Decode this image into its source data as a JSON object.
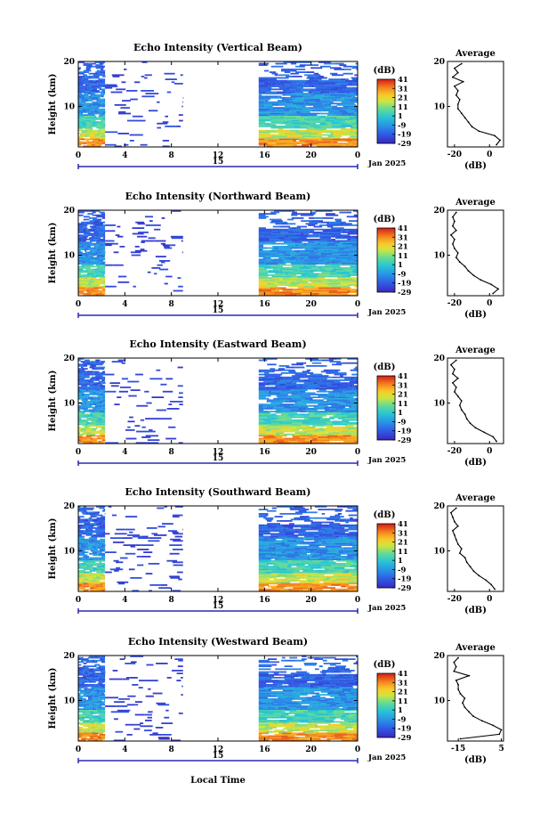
{
  "figure": {
    "xlabel": "Local Time",
    "date_label": "Jan 2025"
  },
  "chart_data": [
    {
      "type": "heatmap",
      "title": "Echo Intensity (Vertical Beam)",
      "ylabel": "Height (km)",
      "xlabel": "Local Time",
      "x_ticks": [
        "0",
        "4",
        "8",
        "12",
        "16",
        "20",
        "0"
      ],
      "x_range": [
        0,
        24
      ],
      "day_label": "15",
      "date_label": "Jan 2025",
      "y_ticks": [
        "10",
        "20"
      ],
      "y_range": [
        1,
        20
      ],
      "colorbar": {
        "unit": "(dB)",
        "ticks": [
          "41",
          "31",
          "21",
          "11",
          "1",
          "-9",
          "-19",
          "-29"
        ],
        "range": [
          -29,
          41
        ]
      },
      "data_gaps_hours": [
        [
          2.3,
          9.0
        ],
        [
          9.0,
          15.5
        ]
      ],
      "profile": {
        "title": "Average",
        "xlabel": "(dB)",
        "x_ticks": [
          "-20",
          "0"
        ],
        "x_range": [
          -24,
          8
        ],
        "y_ticks": [
          "10",
          "20"
        ],
        "y_range": [
          1,
          20
        ],
        "height_km": [
          1.5,
          2.5,
          3.5,
          4.5,
          5.5,
          6.5,
          7.5,
          8.5,
          9.5,
          10.5,
          11.5,
          12.5,
          13.5,
          14.5,
          15.5,
          16.5,
          17.5,
          18.5,
          19.5
        ],
        "values_db": [
          4,
          6,
          3,
          -6,
          -10,
          -12,
          -14,
          -16,
          -18,
          -18,
          -17,
          -19,
          -18,
          -20,
          -15,
          -21,
          -18,
          -20,
          -16
        ]
      }
    },
    {
      "type": "heatmap",
      "title": "Echo Intensity (Northward Beam)",
      "ylabel": "Height (km)",
      "xlabel": "Local Time",
      "x_ticks": [
        "0",
        "4",
        "8",
        "12",
        "16",
        "20",
        "0"
      ],
      "x_range": [
        0,
        24
      ],
      "day_label": "15",
      "date_label": "Jan 2025",
      "y_ticks": [
        "10",
        "20"
      ],
      "y_range": [
        1,
        20
      ],
      "colorbar": {
        "unit": "(dB)",
        "ticks": [
          "41",
          "31",
          "21",
          "11",
          "1",
          "-9",
          "-19",
          "-29"
        ],
        "range": [
          -29,
          41
        ]
      },
      "profile": {
        "title": "Average",
        "xlabel": "(dB)",
        "x_ticks": [
          "-20",
          "0"
        ],
        "x_range": [
          -24,
          8
        ],
        "y_ticks": [
          "10",
          "20"
        ],
        "y_range": [
          1,
          20
        ],
        "height_km": [
          1.5,
          2.5,
          3.5,
          4.5,
          5.5,
          6.5,
          7.5,
          8.5,
          9.5,
          10.5,
          11.5,
          12.5,
          13.5,
          14.5,
          15.5,
          16.5,
          17.5,
          18.5,
          19.5
        ],
        "values_db": [
          2,
          5,
          1,
          -5,
          -9,
          -12,
          -14,
          -17,
          -19,
          -18,
          -20,
          -21,
          -20,
          -22,
          -19,
          -21,
          -20,
          -21,
          -19
        ]
      }
    },
    {
      "type": "heatmap",
      "title": "Echo Intensity (Eastward Beam)",
      "ylabel": "Height (km)",
      "xlabel": "Local Time",
      "x_ticks": [
        "0",
        "4",
        "8",
        "12",
        "16",
        "20",
        "0"
      ],
      "x_range": [
        0,
        24
      ],
      "day_label": "15",
      "date_label": "Jan 2025",
      "y_ticks": [
        "10",
        "20"
      ],
      "y_range": [
        1,
        20
      ],
      "colorbar": {
        "unit": "(dB)",
        "ticks": [
          "41",
          "31",
          "21",
          "11",
          "1",
          "-9",
          "-19",
          "-29"
        ],
        "range": [
          -29,
          41
        ]
      },
      "profile": {
        "title": "Average",
        "xlabel": "(dB)",
        "x_ticks": [
          "-20",
          "0"
        ],
        "x_range": [
          -24,
          8
        ],
        "y_ticks": [
          "10",
          "20"
        ],
        "y_range": [
          1,
          20
        ],
        "height_km": [
          1.5,
          2.5,
          3.5,
          4.5,
          5.5,
          6.5,
          7.5,
          8.5,
          9.5,
          10.5,
          11.5,
          12.5,
          13.5,
          14.5,
          15.5,
          16.5,
          17.5,
          18.5,
          19.5
        ],
        "values_db": [
          4,
          2,
          -3,
          -8,
          -11,
          -13,
          -14,
          -16,
          -17,
          -16,
          -18,
          -20,
          -19,
          -21,
          -18,
          -21,
          -20,
          -22,
          -19
        ]
      }
    },
    {
      "type": "heatmap",
      "title": "Echo Intensity (Southward Beam)",
      "ylabel": "Height (km)",
      "xlabel": "Local Time",
      "x_ticks": [
        "0",
        "4",
        "8",
        "12",
        "16",
        "20",
        "0"
      ],
      "x_range": [
        0,
        24
      ],
      "day_label": "15",
      "date_label": "Jan 2025",
      "y_ticks": [
        "10",
        "20"
      ],
      "y_range": [
        1,
        20
      ],
      "colorbar": {
        "unit": "(dB)",
        "ticks": [
          "41",
          "31",
          "21",
          "11",
          "1",
          "-9",
          "-19",
          "-29"
        ],
        "range": [
          -29,
          41
        ]
      },
      "profile": {
        "title": "Average",
        "xlabel": "(dB)",
        "x_ticks": [
          "-20",
          "0"
        ],
        "x_range": [
          -24,
          8
        ],
        "y_ticks": [
          "10",
          "20"
        ],
        "y_range": [
          1,
          20
        ],
        "height_km": [
          1.5,
          2.5,
          3.5,
          4.5,
          5.5,
          6.5,
          7.5,
          8.5,
          9.5,
          10.5,
          11.5,
          12.5,
          13.5,
          14.5,
          15.5,
          16.5,
          17.5,
          18.5,
          19.5
        ],
        "values_db": [
          3,
          1,
          -2,
          -6,
          -9,
          -11,
          -13,
          -14,
          -17,
          -16,
          -18,
          -19,
          -20,
          -21,
          -18,
          -20,
          -21,
          -22,
          -19
        ]
      }
    },
    {
      "type": "heatmap",
      "title": "Echo Intensity (Westward Beam)",
      "ylabel": "Height (km)",
      "xlabel": "Local Time",
      "x_ticks": [
        "0",
        "4",
        "8",
        "12",
        "16",
        "20",
        "0"
      ],
      "x_range": [
        0,
        24
      ],
      "day_label": "15",
      "date_label": "Jan 2025",
      "y_ticks": [
        "10",
        "20"
      ],
      "y_range": [
        1,
        20
      ],
      "colorbar": {
        "unit": "(dB)",
        "ticks": [
          "41",
          "31",
          "21",
          "11",
          "1",
          "-9",
          "-19",
          "-29"
        ],
        "range": [
          -29,
          41
        ]
      },
      "profile": {
        "title": "Average",
        "xlabel": "(dB)",
        "x_ticks": [
          "-15",
          "5"
        ],
        "x_range": [
          -20,
          6
        ],
        "y_ticks": [
          "10",
          "20"
        ],
        "y_range": [
          1,
          20
        ],
        "height_km": [
          1.5,
          2.5,
          3.5,
          4.5,
          5.5,
          6.5,
          7.5,
          8.5,
          9.5,
          10.5,
          11.5,
          12.5,
          13.5,
          14.5,
          15.5,
          16.5,
          17.5,
          18.5,
          19.5
        ],
        "values_db": [
          -14,
          4,
          5,
          1,
          -4,
          -8,
          -10,
          -12,
          -13,
          -12,
          -14,
          -15,
          -15,
          -16,
          -10,
          -17,
          -16,
          -17,
          -15
        ]
      }
    }
  ]
}
